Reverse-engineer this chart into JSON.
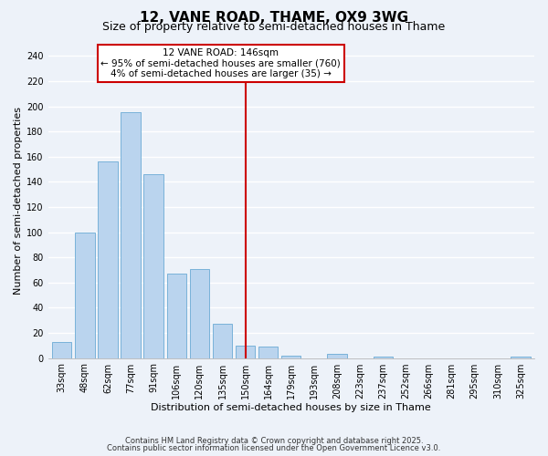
{
  "title": "12, VANE ROAD, THAME, OX9 3WG",
  "subtitle": "Size of property relative to semi-detached houses in Thame",
  "xlabel": "Distribution of semi-detached houses by size in Thame",
  "ylabel": "Number of semi-detached properties",
  "bar_labels": [
    "33sqm",
    "48sqm",
    "62sqm",
    "77sqm",
    "91sqm",
    "106sqm",
    "120sqm",
    "135sqm",
    "150sqm",
    "164sqm",
    "179sqm",
    "193sqm",
    "208sqm",
    "223sqm",
    "237sqm",
    "252sqm",
    "266sqm",
    "281sqm",
    "295sqm",
    "310sqm",
    "325sqm"
  ],
  "bar_values": [
    13,
    100,
    156,
    195,
    146,
    67,
    71,
    27,
    10,
    9,
    2,
    0,
    3,
    0,
    1,
    0,
    0,
    0,
    0,
    0,
    1
  ],
  "bar_color": "#bad4ee",
  "bar_edge_color": "#6aaad4",
  "vline_x_label": "150sqm",
  "vline_label": "12 VANE ROAD: 146sqm",
  "annotation_line1": "← 95% of semi-detached houses are smaller (760)",
  "annotation_line2": "4% of semi-detached houses are larger (35) →",
  "ylim": [
    0,
    250
  ],
  "yticks": [
    0,
    20,
    40,
    60,
    80,
    100,
    120,
    140,
    160,
    180,
    200,
    220,
    240
  ],
  "footer1": "Contains HM Land Registry data © Crown copyright and database right 2025.",
  "footer2": "Contains public sector information licensed under the Open Government Licence v3.0.",
  "bg_color": "#edf2f9",
  "grid_color": "#ffffff",
  "vline_color": "#cc0000",
  "box_edge_color": "#cc0000",
  "title_fontsize": 11,
  "subtitle_fontsize": 9,
  "axis_label_fontsize": 8,
  "tick_fontsize": 7,
  "annot_fontsize": 7.5,
  "footer_fontsize": 6
}
